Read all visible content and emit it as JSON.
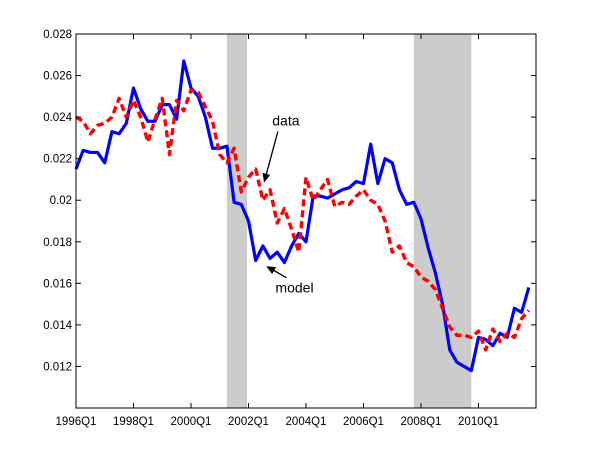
{
  "chart_data": {
    "type": "line",
    "title": "",
    "xlabel": "",
    "ylabel": "",
    "xlim": [
      1996.0,
      2012.0
    ],
    "ylim": [
      0.01,
      0.028
    ],
    "grid": false,
    "x_ticks": [
      1996.0,
      1998.0,
      2000.0,
      2002.0,
      2004.0,
      2006.0,
      2008.0,
      2010.0
    ],
    "x_tick_labels": [
      "1996Q1",
      "1998Q1",
      "2000Q1",
      "2002Q1",
      "2004Q1",
      "2006Q1",
      "2008Q1",
      "2010Q1"
    ],
    "y_ticks": [
      0.012,
      0.014,
      0.016,
      0.018,
      0.02,
      0.022,
      0.024,
      0.026,
      0.028
    ],
    "y_tick_labels": [
      "0.012",
      "0.014",
      "0.016",
      "0.018",
      "0.02",
      "0.022",
      "0.024",
      "0.026",
      "0.028"
    ],
    "recession_bands": [
      [
        2001.25,
        2001.95
      ],
      [
        2007.75,
        2009.75
      ]
    ],
    "band_color": "#cccccc",
    "series": [
      {
        "name": "model",
        "color": "#0000ff",
        "style": "solid",
        "x": [
          1996.0,
          1996.25,
          1996.5,
          1996.75,
          1997.0,
          1997.25,
          1997.5,
          1997.75,
          1998.0,
          1998.25,
          1998.5,
          1998.75,
          1999.0,
          1999.25,
          1999.5,
          1999.75,
          2000.0,
          2000.25,
          2000.5,
          2000.75,
          2001.0,
          2001.25,
          2001.5,
          2001.75,
          2002.0,
          2002.25,
          2002.5,
          2002.75,
          2003.0,
          2003.25,
          2003.5,
          2003.75,
          2004.0,
          2004.25,
          2004.5,
          2004.75,
          2005.0,
          2005.25,
          2005.5,
          2005.75,
          2006.0,
          2006.25,
          2006.5,
          2006.75,
          2007.0,
          2007.25,
          2007.5,
          2007.75,
          2008.0,
          2008.25,
          2008.5,
          2008.75,
          2009.0,
          2009.25,
          2009.5,
          2009.75,
          2010.0,
          2010.25,
          2010.5,
          2010.75,
          2011.0,
          2011.25,
          2011.5,
          2011.75
        ],
        "values": [
          0.0215,
          0.0224,
          0.0223,
          0.0223,
          0.0218,
          0.0233,
          0.0232,
          0.0237,
          0.0254,
          0.0244,
          0.0238,
          0.0238,
          0.0246,
          0.0246,
          0.0239,
          0.0267,
          0.0254,
          0.025,
          0.024,
          0.0225,
          0.0225,
          0.0226,
          0.0199,
          0.0198,
          0.019,
          0.0171,
          0.0178,
          0.0172,
          0.0175,
          0.017,
          0.0178,
          0.0184,
          0.018,
          0.0202,
          0.0202,
          0.0201,
          0.0203,
          0.0205,
          0.0206,
          0.0209,
          0.0208,
          0.0227,
          0.0208,
          0.022,
          0.0218,
          0.0205,
          0.0198,
          0.0199,
          0.0191,
          0.0177,
          0.0165,
          0.015,
          0.0128,
          0.0122,
          0.012,
          0.0118,
          0.0134,
          0.0133,
          0.013,
          0.0136,
          0.0134,
          0.0148,
          0.0146,
          0.0158
        ]
      },
      {
        "name": "data",
        "color": "#ff0000",
        "style": "dashed",
        "x": [
          1996.0,
          1996.25,
          1996.5,
          1996.75,
          1997.0,
          1997.25,
          1997.5,
          1997.75,
          1998.0,
          1998.25,
          1998.5,
          1998.75,
          1999.0,
          1999.25,
          1999.5,
          1999.75,
          2000.0,
          2000.25,
          2000.5,
          2000.75,
          2001.0,
          2001.25,
          2001.5,
          2001.75,
          2002.0,
          2002.25,
          2002.5,
          2002.75,
          2003.0,
          2003.25,
          2003.5,
          2003.75,
          2004.0,
          2004.25,
          2004.5,
          2004.75,
          2005.0,
          2005.25,
          2005.5,
          2005.75,
          2006.0,
          2006.25,
          2006.5,
          2006.75,
          2007.0,
          2007.25,
          2007.5,
          2007.75,
          2008.0,
          2008.25,
          2008.5,
          2008.75,
          2009.0,
          2009.25,
          2009.5,
          2009.75,
          2010.0,
          2010.25,
          2010.5,
          2010.75,
          2011.0,
          2011.25,
          2011.5,
          2011.75
        ],
        "values": [
          0.024,
          0.0238,
          0.0232,
          0.0236,
          0.0237,
          0.024,
          0.0249,
          0.024,
          0.0248,
          0.024,
          0.0228,
          0.0239,
          0.0249,
          0.0222,
          0.0248,
          0.0243,
          0.0253,
          0.0252,
          0.0245,
          0.0238,
          0.0222,
          0.0218,
          0.0225,
          0.0204,
          0.0211,
          0.0215,
          0.02,
          0.0205,
          0.0189,
          0.0196,
          0.0186,
          0.0175,
          0.0211,
          0.02,
          0.0205,
          0.021,
          0.0197,
          0.0199,
          0.0198,
          0.0202,
          0.0205,
          0.02,
          0.0198,
          0.019,
          0.0175,
          0.0178,
          0.017,
          0.0168,
          0.0163,
          0.0161,
          0.0157,
          0.0148,
          0.0139,
          0.0135,
          0.0135,
          0.0134,
          0.0137,
          0.0128,
          0.0138,
          0.0132,
          0.0136,
          0.0134,
          0.0143,
          0.0147
        ]
      }
    ],
    "annotations": [
      {
        "text": "data",
        "series": "data",
        "text_x": 2003.3,
        "text_y": 0.0236,
        "arrow_x": 2002.55,
        "arrow_y": 0.0209
      },
      {
        "text": "model",
        "series": "model",
        "text_x": 2003.6,
        "text_y": 0.01555,
        "arrow_x": 2002.65,
        "arrow_y": 0.0168
      }
    ]
  }
}
